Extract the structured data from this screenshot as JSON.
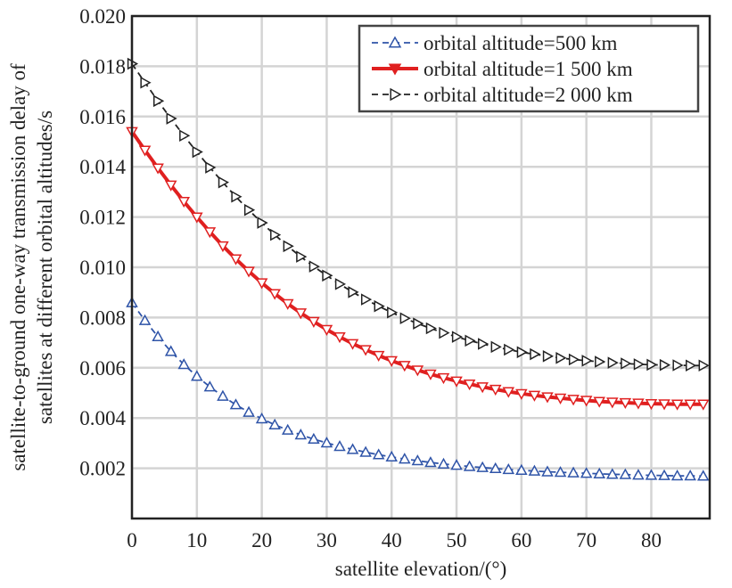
{
  "chart_data": {
    "type": "line",
    "title": "",
    "xlabel": "satellite elevation/(°)",
    "ylabel_lines": [
      "satellite-to-ground one-way transmission delay of",
      "satellites at different orbital altitudes/s"
    ],
    "xlim": [
      0,
      89
    ],
    "ylim": [
      0,
      0.02
    ],
    "xticks": [
      0,
      10,
      20,
      30,
      40,
      50,
      60,
      70,
      80
    ],
    "xtick_labels": [
      "0",
      "10",
      "20",
      "30",
      "40",
      "50",
      "60",
      "70",
      "80"
    ],
    "yticks": [
      0.002,
      0.004,
      0.006,
      0.008,
      0.01,
      0.012,
      0.014,
      0.016,
      0.018,
      0.02
    ],
    "ytick_labels": [
      "0.002",
      "0.004",
      "0.006",
      "0.008",
      "0.010",
      "0.012",
      "0.014",
      "0.016",
      "0.018",
      "0.020"
    ],
    "grid": true,
    "legend_position": "top-right",
    "x": [
      0,
      2,
      4,
      6,
      8,
      10,
      12,
      14,
      16,
      18,
      20,
      22,
      24,
      26,
      28,
      30,
      32,
      34,
      36,
      38,
      40,
      42,
      44,
      46,
      48,
      50,
      52,
      54,
      56,
      58,
      60,
      62,
      64,
      66,
      68,
      70,
      72,
      74,
      76,
      78,
      80,
      82,
      84,
      86,
      88
    ],
    "series": [
      {
        "name": "orbital altitude=500 km",
        "color": "#2f54a8",
        "line_style": "dashed",
        "marker": "triangle-up",
        "values": [
          0.00859,
          0.00788,
          0.00724,
          0.00665,
          0.00613,
          0.00566,
          0.00524,
          0.00487,
          0.00453,
          0.00423,
          0.00397,
          0.00373,
          0.00352,
          0.00333,
          0.00316,
          0.00301,
          0.00287,
          0.00275,
          0.00264,
          0.00254,
          0.00245,
          0.00237,
          0.0023,
          0.00223,
          0.00217,
          0.00212,
          0.00207,
          0.00203,
          0.00199,
          0.00195,
          0.00192,
          0.00189,
          0.00186,
          0.00184,
          0.00182,
          0.0018,
          0.00178,
          0.00176,
          0.00175,
          0.00173,
          0.00172,
          0.00171,
          0.0017,
          0.0017,
          0.00169
        ]
      },
      {
        "name": "orbital altitude=1 500 km",
        "color": "#e02020",
        "line_style": "solid",
        "marker": "triangle-down",
        "values": [
          0.0154,
          0.01466,
          0.01395,
          0.01327,
          0.01262,
          0.012,
          0.01141,
          0.01085,
          0.01033,
          0.00984,
          0.00938,
          0.00895,
          0.00855,
          0.00818,
          0.00784,
          0.00752,
          0.00723,
          0.00696,
          0.00672,
          0.00649,
          0.00628,
          0.00609,
          0.00591,
          0.00575,
          0.0056,
          0.00547,
          0.00535,
          0.00524,
          0.00514,
          0.00505,
          0.00497,
          0.0049,
          0.00484,
          0.00479,
          0.00474,
          0.0047,
          0.00466,
          0.00463,
          0.00461,
          0.00459,
          0.00457,
          0.00456,
          0.00455,
          0.00455,
          0.00455
        ]
      },
      {
        "name": "orbital altitude=2 000 km",
        "color": "#222222",
        "line_style": "dashed",
        "marker": "triangle-right",
        "values": [
          0.0181,
          0.01735,
          0.01662,
          0.01592,
          0.01524,
          0.01459,
          0.01397,
          0.01338,
          0.01281,
          0.01228,
          0.01177,
          0.01129,
          0.01084,
          0.01042,
          0.01003,
          0.00967,
          0.00933,
          0.00901,
          0.00872,
          0.00845,
          0.0082,
          0.00797,
          0.00776,
          0.00757,
          0.00739,
          0.00723,
          0.00708,
          0.00695,
          0.00683,
          0.00672,
          0.00662,
          0.00654,
          0.00646,
          0.00639,
          0.00633,
          0.00628,
          0.00624,
          0.0062,
          0.00617,
          0.00614,
          0.00612,
          0.00611,
          0.0061,
          0.00609,
          0.00609
        ]
      }
    ]
  }
}
